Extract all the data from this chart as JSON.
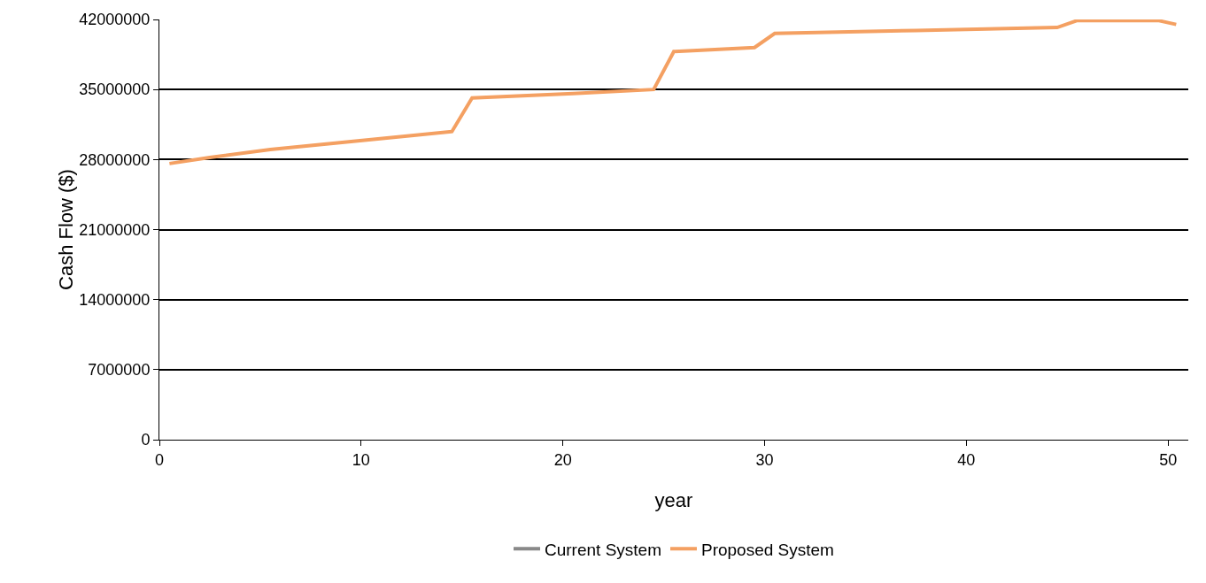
{
  "chart_data": {
    "type": "line",
    "xlabel": "year",
    "ylabel": "Cash Flow ($)",
    "x": [
      0.5,
      2.5,
      5.5,
      8.5,
      10.5,
      12.5,
      14.5,
      15.5,
      20.5,
      24.5,
      25.5,
      29.5,
      30.5,
      37.5,
      44.5,
      45.5,
      49.5,
      50.4
    ],
    "series": [
      {
        "name": "Current System",
        "color": "#898989",
        "values": [
          null,
          null,
          null,
          null,
          null,
          null,
          null,
          null,
          null,
          null,
          null,
          null,
          null,
          null,
          null,
          null,
          null,
          null
        ]
      },
      {
        "name": "Proposed System",
        "color": "#f4a062",
        "values": [
          27600000,
          28200000,
          29000000,
          29600000,
          30000000,
          30400000,
          30800000,
          34150000,
          34600000,
          35000000,
          38800000,
          39200000,
          40600000,
          40900000,
          41200000,
          41900000,
          41900000,
          41500000
        ]
      }
    ],
    "xlim": [
      0,
      51
    ],
    "xticks": [
      0,
      10,
      20,
      30,
      40,
      50
    ],
    "ylim": [
      0,
      42000000
    ],
    "yticks": [
      0,
      7000000,
      14000000,
      21000000,
      28000000,
      35000000,
      42000000
    ],
    "grid": "y",
    "legend": "bottom"
  }
}
